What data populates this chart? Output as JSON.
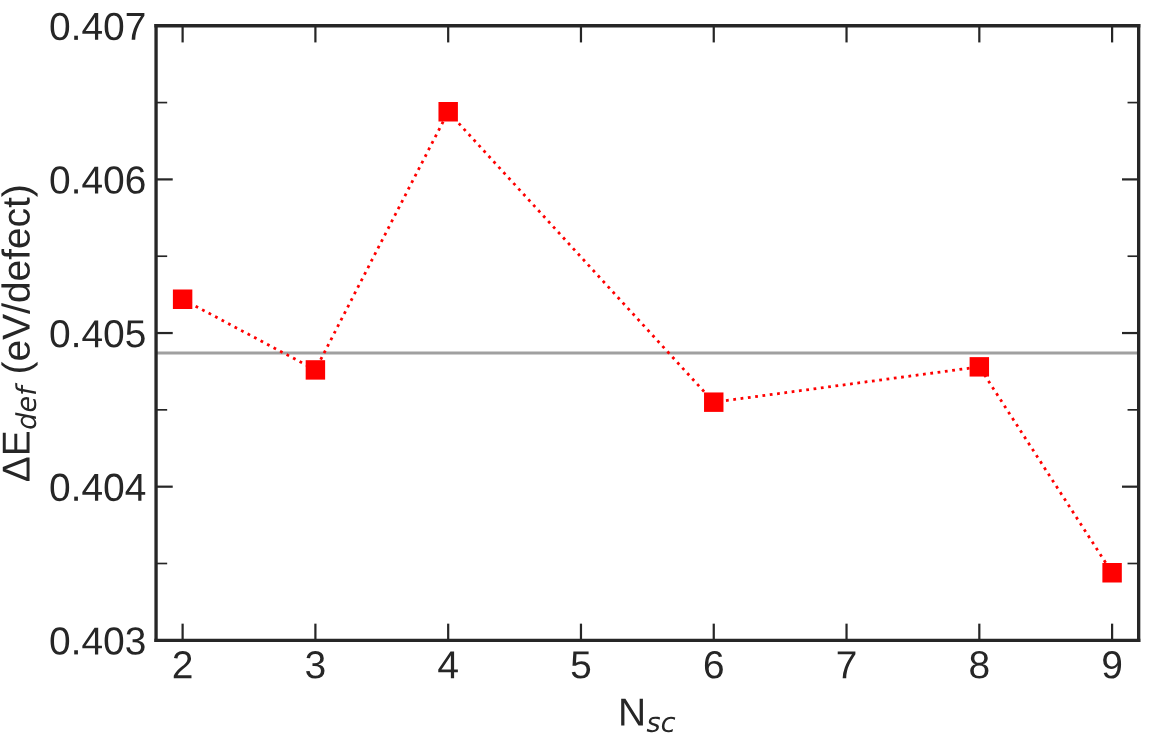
{
  "chart_data": {
    "type": "line",
    "xlabel": "N$_{sc}$",
    "ylabel": "ΔE$_{def}$ (eV/defect)",
    "x": [
      2,
      3,
      4,
      6,
      8,
      9
    ],
    "series": [
      {
        "color": "#ff0000",
        "values": [
          0.40522,
          0.40476,
          0.40644,
          0.40455,
          0.40478,
          0.40344
        ]
      }
    ],
    "xlim": [
      1.8,
      9.2
    ],
    "xticks": [
      2,
      3,
      4,
      5,
      6,
      7,
      8,
      9
    ],
    "ylim": [
      0.403,
      0.407
    ],
    "yticks": [
      0.403,
      0.404,
      0.405,
      0.406,
      0.407
    ],
    "ref_lines": [
      {
        "axis": "y",
        "value": 0.40487,
        "color": "#a0a0a0"
      }
    ],
    "marker": "square",
    "line_style": "dotted",
    "grid": false,
    "legend": false
  }
}
